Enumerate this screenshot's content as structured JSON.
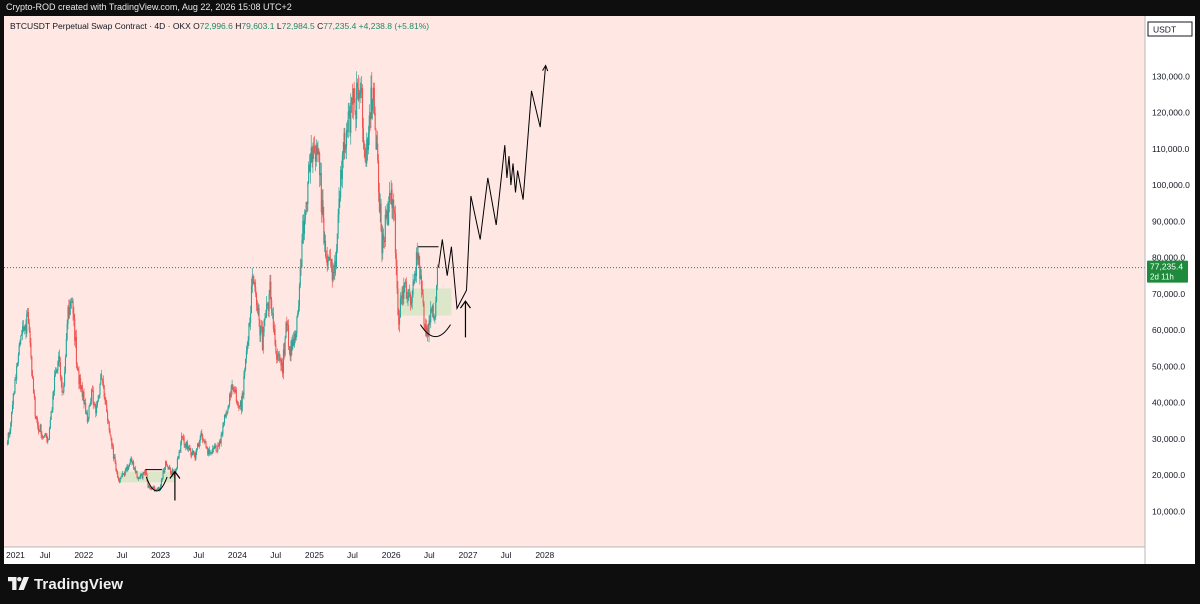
{
  "header": {
    "credit": "Crypto-ROD created with TradingView.com, Aug 22, 2026 15:08 UTC+2"
  },
  "legend": {
    "symbol": "BTCUSDT Perpetual Swap Contract · 4D · OKX",
    "open_label": "O",
    "open": "72,996.6",
    "high_label": "H",
    "high": "79,603.1",
    "low_label": "L",
    "low": "72,984.5",
    "close_label": "C",
    "close": "77,235.4",
    "change": "+4,238.8 (+5.81%)"
  },
  "price_axis": {
    "currency": "USDT",
    "ticks": [
      "130,000.0",
      "120,000.0",
      "110,000.0",
      "100,000.0",
      "90,000.0",
      "80,000.0",
      "70,000.0",
      "60,000.0",
      "50,000.0",
      "40,000.0",
      "30,000.0",
      "20,000.0",
      "10,000.0"
    ],
    "last_price": "77,235.4",
    "countdown": "2d 11h"
  },
  "time_axis": {
    "labels": [
      "2021",
      "Jul",
      "2022",
      "Jul",
      "2023",
      "Jul",
      "2024",
      "Jul",
      "2025",
      "Jul",
      "2026",
      "Jul",
      "2027",
      "Jul",
      "2028"
    ]
  },
  "footer": {
    "brand": "TradingView"
  },
  "colors": {
    "background": "#ffe8e4",
    "up": "#26a69a",
    "down": "#ef5350",
    "zone": "#d6e6c4",
    "last_price_badge": "#1e8a3c",
    "drawing": "#000000"
  },
  "chart_data": {
    "type": "candlestick",
    "interval": "4D",
    "y_scale": "linear",
    "ylim": [
      0,
      137000
    ],
    "x_range": [
      "2021-01-01",
      "2028-06-01"
    ],
    "last_close": 77235.4,
    "price_path": [
      [
        "2021-01-01",
        29000
      ],
      [
        "2021-01-20",
        33000
      ],
      [
        "2021-02-20",
        52000
      ],
      [
        "2021-03-15",
        58000
      ],
      [
        "2021-04-14",
        63000
      ],
      [
        "2021-05-19",
        35000
      ],
      [
        "2021-06-22",
        31000
      ],
      [
        "2021-07-20",
        30000
      ],
      [
        "2021-08-20",
        48000
      ],
      [
        "2021-09-07",
        51000
      ],
      [
        "2021-09-25",
        42000
      ],
      [
        "2021-10-20",
        65000
      ],
      [
        "2021-11-10",
        68000
      ],
      [
        "2021-12-04",
        49000
      ],
      [
        "2022-01-22",
        35000
      ],
      [
        "2022-02-10",
        44000
      ],
      [
        "2022-02-24",
        37000
      ],
      [
        "2022-03-28",
        47000
      ],
      [
        "2022-05-10",
        30000
      ],
      [
        "2022-06-18",
        18000
      ],
      [
        "2022-07-10",
        20000
      ],
      [
        "2022-08-14",
        24000
      ],
      [
        "2022-09-20",
        19000
      ],
      [
        "2022-10-25",
        20500
      ],
      [
        "2022-11-09",
        16000
      ],
      [
        "2022-12-30",
        16500
      ],
      [
        "2023-01-25",
        23000
      ],
      [
        "2023-03-10",
        20000
      ],
      [
        "2023-04-14",
        30000
      ],
      [
        "2023-06-15",
        25000
      ],
      [
        "2023-07-14",
        31000
      ],
      [
        "2023-08-17",
        26000
      ],
      [
        "2023-10-05",
        27500
      ],
      [
        "2023-11-10",
        37000
      ],
      [
        "2023-12-08",
        44000
      ],
      [
        "2024-01-23",
        39000
      ],
      [
        "2024-02-28",
        62000
      ],
      [
        "2024-03-14",
        73000
      ],
      [
        "2024-05-01",
        57000
      ],
      [
        "2024-06-05",
        71000
      ],
      [
        "2024-07-05",
        54000
      ],
      [
        "2024-08-05",
        50000
      ],
      [
        "2024-08-25",
        64000
      ],
      [
        "2024-09-06",
        53000
      ],
      [
        "2024-10-10",
        60000
      ],
      [
        "2024-11-13",
        90000
      ],
      [
        "2024-12-17",
        107000
      ],
      [
        "2025-01-20",
        109000
      ],
      [
        "2025-02-28",
        79000
      ],
      [
        "2025-04-07",
        75000
      ],
      [
        "2025-05-22",
        111000
      ],
      [
        "2025-07-14",
        123000
      ],
      [
        "2025-08-14",
        124000
      ],
      [
        "2025-09-01",
        108000
      ],
      [
        "2025-10-06",
        126000
      ],
      [
        "2025-10-30",
        107000
      ],
      [
        "2025-11-20",
        82000
      ],
      [
        "2025-12-10",
        92000
      ],
      [
        "2026-01-14",
        97000
      ],
      [
        "2026-02-05",
        63000
      ],
      [
        "2026-03-05",
        72000
      ],
      [
        "2026-04-10",
        67000
      ],
      [
        "2026-05-10",
        82000
      ],
      [
        "2026-06-05",
        64000
      ],
      [
        "2026-06-20",
        58000
      ],
      [
        "2026-07-10",
        65000
      ],
      [
        "2026-07-28",
        63000
      ],
      [
        "2026-08-10",
        77235
      ]
    ],
    "drawings": {
      "zones": [
        {
          "from": "2022-06-13",
          "to": "2023-03-10",
          "low": 18000,
          "high": 21000
        },
        {
          "from": "2026-02-05",
          "to": "2026-10-15",
          "low": 64000,
          "high": 71500
        }
      ],
      "resistance_lines": [
        {
          "from": "2022-10-20",
          "to": "2023-01-08",
          "price": 21500
        },
        {
          "from": "2026-05-10",
          "to": "2026-08-14",
          "price": 83000
        }
      ],
      "arcs": [
        {
          "from": "2022-10-25",
          "to": "2023-02-01"
        },
        {
          "from": "2026-05-20",
          "to": "2026-10-10"
        }
      ],
      "arrows_up": [
        {
          "date": "2023-03-10",
          "from": 13000,
          "to": 21000
        },
        {
          "date": "2026-12-20",
          "from": 58000,
          "to": 68000
        }
      ],
      "projection": [
        [
          "2026-08-14",
          77235
        ],
        [
          "2026-09-01",
          85000
        ],
        [
          "2026-09-24",
          75000
        ],
        [
          "2026-10-14",
          83000
        ],
        [
          "2026-11-10",
          66000
        ],
        [
          "2026-12-25",
          71000
        ],
        [
          "2027-01-15",
          97000
        ],
        [
          "2027-02-28",
          85000
        ],
        [
          "2027-04-05",
          102000
        ],
        [
          "2027-05-15",
          89000
        ],
        [
          "2027-06-25",
          111000
        ],
        [
          "2027-07-05",
          102000
        ],
        [
          "2027-07-15",
          108000
        ],
        [
          "2027-07-24",
          100000
        ],
        [
          "2027-08-03",
          106000
        ],
        [
          "2027-08-15",
          98000
        ],
        [
          "2027-08-25",
          104000
        ],
        [
          "2027-09-20",
          96000
        ],
        [
          "2027-10-30",
          126000
        ],
        [
          "2027-12-10",
          116000
        ],
        [
          "2028-01-05",
          133000
        ]
      ]
    }
  }
}
